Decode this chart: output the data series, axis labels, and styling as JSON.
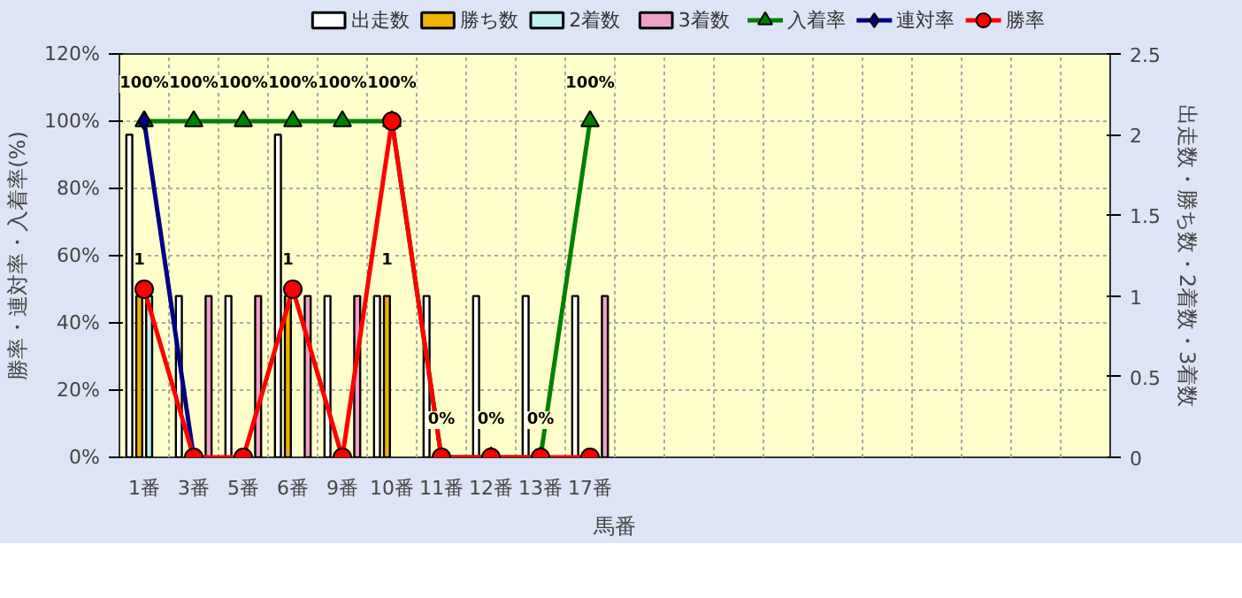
{
  "chart_data": {
    "type": "bar",
    "xlabel": "馬番",
    "ylabel": "勝率・連対率・入着率(%)",
    "y2label": "出走数・勝ち数・2着数・3着数",
    "categories": [
      "1番",
      "3番",
      "5番",
      "6番",
      "9番",
      "10番",
      "11番",
      "12番",
      "13番",
      "17番",
      null,
      null,
      null,
      null,
      null,
      null,
      null,
      null,
      null,
      null
    ],
    "ylim": [
      0,
      120
    ],
    "yticks": [
      {
        "value": 0,
        "label": "0%"
      },
      {
        "value": 20,
        "label": "20%"
      },
      {
        "value": 40,
        "label": "40%"
      },
      {
        "value": 60,
        "label": "60%"
      },
      {
        "value": 80,
        "label": "80%"
      },
      {
        "value": 100,
        "label": "100%"
      },
      {
        "value": 120,
        "label": "120%"
      }
    ],
    "y2lim": [
      0,
      2.5
    ],
    "y2ticks": [
      0,
      0.5,
      1,
      1.5,
      2,
      2.5
    ],
    "grid": true,
    "legend": "top",
    "series": [
      {
        "name": "出走数",
        "type": "bar",
        "axis": "y2",
        "color": "#ffffff",
        "values": [
          2,
          1,
          1,
          2,
          1,
          1,
          1,
          1,
          1,
          1,
          null,
          null,
          null,
          null,
          null,
          null,
          null,
          null,
          null,
          null
        ]
      },
      {
        "name": "勝ち数",
        "type": "bar",
        "axis": "y2",
        "color": "#f0b400",
        "values": [
          1,
          0,
          0,
          1,
          0,
          1,
          0,
          0,
          0,
          0,
          null,
          null,
          null,
          null,
          null,
          null,
          null,
          null,
          null,
          null
        ],
        "value_labels": [
          "1",
          null,
          null,
          "1",
          null,
          "1",
          null,
          null,
          null,
          null,
          null,
          null,
          null,
          null,
          null,
          null,
          null,
          null,
          null,
          null
        ]
      },
      {
        "name": "2着数",
        "type": "bar",
        "axis": "y2",
        "color": "#bff0f0",
        "values": [
          1,
          0,
          0,
          0,
          0,
          0,
          0,
          0,
          0,
          0,
          null,
          null,
          null,
          null,
          null,
          null,
          null,
          null,
          null,
          null
        ]
      },
      {
        "name": "3着数",
        "type": "bar",
        "axis": "y2",
        "color": "#f0a0c8",
        "values": [
          0,
          1,
          1,
          1,
          1,
          0,
          0,
          0,
          0,
          1,
          null,
          null,
          null,
          null,
          null,
          null,
          null,
          null,
          null,
          null
        ]
      },
      {
        "name": "入着率",
        "type": "line",
        "color": "#008000",
        "marker": "triangle",
        "values": [
          100,
          100,
          100,
          100,
          100,
          100,
          0,
          0,
          0,
          100,
          null,
          null,
          null,
          null,
          null,
          null,
          null,
          null,
          null,
          null
        ],
        "value_labels": [
          "100%",
          "100%",
          "100%",
          "100%",
          "100%",
          "100%",
          "0%",
          "0%",
          "0%",
          "100%",
          null,
          null,
          null,
          null,
          null,
          null,
          null,
          null,
          null,
          null
        ]
      },
      {
        "name": "連対率",
        "type": "line",
        "color": "#000080",
        "marker": "diamond",
        "values": [
          100,
          0,
          null,
          null,
          null,
          null,
          null,
          null,
          null,
          null,
          null,
          null,
          null,
          null,
          null,
          null,
          null,
          null,
          null,
          null
        ]
      },
      {
        "name": "勝率",
        "type": "line",
        "color": "#ff0000",
        "marker": "circle",
        "values": [
          50,
          0,
          0,
          50,
          0,
          100,
          0,
          0,
          0,
          0,
          null,
          null,
          null,
          null,
          null,
          null,
          null,
          null,
          null,
          null
        ]
      }
    ]
  }
}
